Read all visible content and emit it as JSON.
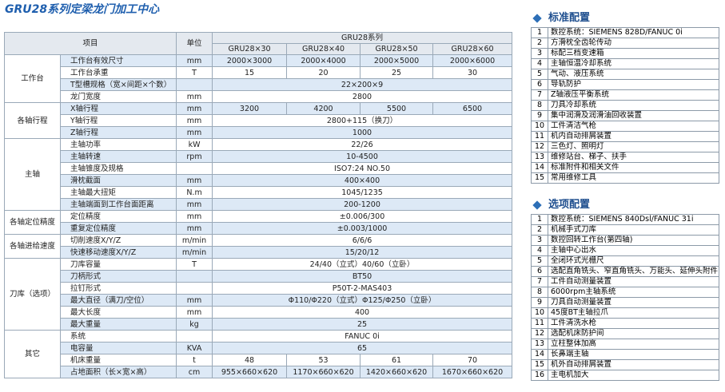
{
  "title": "GRU28系列定梁龙门加工中心",
  "table": {
    "header": {
      "item": "项目",
      "unit": "单位",
      "series": "GRU28系列",
      "models": [
        "GRU28×30",
        "GRU28×40",
        "GRU28×50",
        "GRU28×60"
      ]
    },
    "groups": [
      {
        "name": "工作台",
        "rows": [
          {
            "item": "工作台有效尺寸",
            "unit": "mm",
            "values": [
              "2000×3000",
              "2000×4000",
              "2000×5000",
              "2000×6000"
            ]
          },
          {
            "item": "工作台承重",
            "unit": "T",
            "values": [
              15,
              20,
              25,
              30
            ]
          },
          {
            "item": "T型槽规格（宽×间距×个数）",
            "values": [
              "22×200×9"
            ]
          },
          {
            "item": "龙门宽度",
            "unit": "mm",
            "values": [
              2800
            ]
          }
        ]
      },
      {
        "name": "各轴行程",
        "rows": [
          {
            "item": "X轴行程",
            "unit": "mm",
            "values": [
              3200,
              4200,
              5500,
              6500
            ]
          },
          {
            "item": "Y轴行程",
            "unit": "mm",
            "values": [
              "2800+115（换刀）"
            ]
          },
          {
            "item": "Z轴行程",
            "unit": "mm",
            "values": [
              1000
            ]
          }
        ]
      },
      {
        "name": "主轴",
        "rows": [
          {
            "item": "主轴功率",
            "unit": "kW",
            "values": [
              "22/26"
            ]
          },
          {
            "item": "主轴转速",
            "unit": "rpm",
            "values": [
              "10-4500"
            ]
          },
          {
            "item": "主轴锥度及规格",
            "values": [
              "ISO7:24 NO.50"
            ]
          },
          {
            "item": "滑枕截面",
            "unit": "mm",
            "values": [
              "400×400"
            ]
          },
          {
            "item": "主轴最大扭矩",
            "unit": "N.m",
            "values": [
              "1045/1235"
            ]
          },
          {
            "item": "主轴端面到工作台面距离",
            "unit": "mm",
            "values": [
              "200-1200"
            ]
          }
        ]
      },
      {
        "name": "各轴定位精度",
        "rows": [
          {
            "item": "定位精度",
            "unit": "mm",
            "values": [
              "±0.006/300"
            ]
          },
          {
            "item": "重复定位精度",
            "unit": "mm",
            "values": [
              "±0.003/1000"
            ]
          }
        ]
      },
      {
        "name": "各轴进给速度",
        "rows": [
          {
            "item": "切削速度X/Y/Z",
            "unit": "m/min",
            "values": [
              "6/6/6"
            ]
          },
          {
            "item": "快速移动速度X/Y/Z",
            "unit": "m/min",
            "values": [
              "15/20/12"
            ]
          }
        ]
      },
      {
        "name": "刀库（选项）",
        "rows": [
          {
            "item": "刀库容量",
            "unit": "T",
            "values": [
              "24/40（立式）40/60（立卧）"
            ]
          },
          {
            "item": "刀柄形式",
            "values": [
              "BT50"
            ]
          },
          {
            "item": "拉钉形式",
            "values": [
              "P50T-2-MAS403"
            ]
          },
          {
            "item": "最大直径（满刀/空位）",
            "unit": "mm",
            "values": [
              "Φ110/Φ220（立式）Φ125/Φ250（立卧）"
            ]
          },
          {
            "item": "最大长度",
            "unit": "mm",
            "values": [
              400
            ]
          },
          {
            "item": "最大重量",
            "unit": "kg",
            "values": [
              25
            ]
          }
        ]
      },
      {
        "name": "其它",
        "rows": [
          {
            "item": "系统",
            "values": [
              "FANUC 0i"
            ]
          },
          {
            "item": "电容量",
            "unit": "KVA",
            "values": [
              65
            ]
          },
          {
            "item": "机床重量",
            "unit": "t",
            "values": [
              48,
              53,
              61,
              70
            ]
          },
          {
            "item": "占地面积（长×宽×高）",
            "unit": "cm",
            "values": [
              "955×660×620",
              "1170×660×620",
              "1420×660×620",
              "1670×660×620"
            ]
          }
        ]
      }
    ]
  },
  "standard": {
    "title": "标准配置",
    "items": [
      {
        "no": 1,
        "text": "数控系统：SIEMENS 828D/FANUC 0i"
      },
      {
        "no": 2,
        "text": "方滑枕全齿轮传动"
      },
      {
        "no": 3,
        "text": "标配三档变速箱"
      },
      {
        "no": 4,
        "text": "主轴恒温冷却系统"
      },
      {
        "no": 5,
        "text": "气动、液压系统"
      },
      {
        "no": 6,
        "text": "导轨防护"
      },
      {
        "no": 7,
        "text": "Z轴液压平衡系统"
      },
      {
        "no": 8,
        "text": "刀具冷却系统"
      },
      {
        "no": 9,
        "text": "集中润滑及润滑油回收装置"
      },
      {
        "no": 10,
        "text": "工件清洁气枪"
      },
      {
        "no": 11,
        "text": "机内自动排屑装置"
      },
      {
        "no": 12,
        "text": "三色灯、照明灯"
      },
      {
        "no": 13,
        "text": "维修站台、梯子、扶手"
      },
      {
        "no": 14,
        "text": "标准附件和相关文件"
      },
      {
        "no": 15,
        "text": "常用维修工具"
      }
    ]
  },
  "optional": {
    "title": "选项配置",
    "items": [
      {
        "no": 1,
        "text": "数控系统：SIEMENS 840Dsl/FANUC 31i"
      },
      {
        "no": 2,
        "text": "机械手式刀库"
      },
      {
        "no": 3,
        "text": "数控回转工作台(第四轴)"
      },
      {
        "no": 4,
        "text": "主轴中心出水"
      },
      {
        "no": 5,
        "text": "全闭环式光栅尺"
      },
      {
        "no": 6,
        "text": "选配直角铣头、窄直角铣头、万能头、延伸头附件"
      },
      {
        "no": 7,
        "text": "工件自动测量装置"
      },
      {
        "no": 8,
        "text": "6000rpm主轴系统"
      },
      {
        "no": 9,
        "text": "刀具自动测量装置"
      },
      {
        "no": 10,
        "text": "45度BT主轴拉爪"
      },
      {
        "no": 11,
        "text": "工件清洗水枪"
      },
      {
        "no": 12,
        "text": "选配机床防护间"
      },
      {
        "no": 13,
        "text": "立柱整体加高"
      },
      {
        "no": 14,
        "text": "长鼻端主轴"
      },
      {
        "no": 15,
        "text": "机外自动排屑装置"
      },
      {
        "no": 16,
        "text": "主电机加大"
      }
    ]
  }
}
